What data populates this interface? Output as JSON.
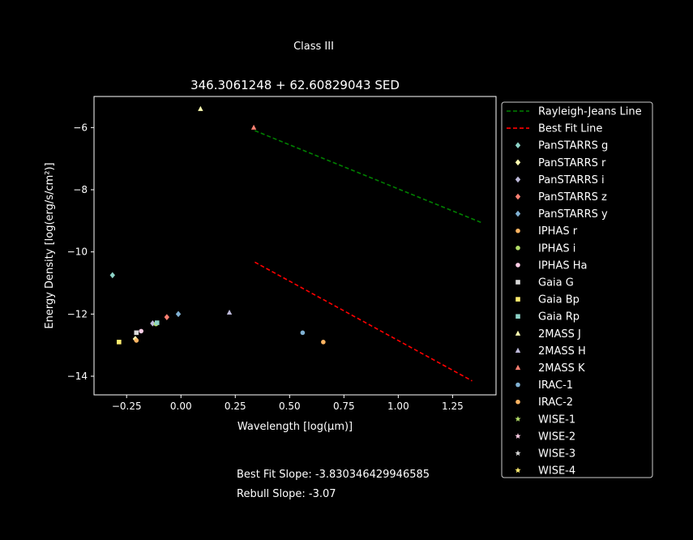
{
  "suptitle": "Class III",
  "footer": {
    "best_fit_slope": "Best Fit Slope: -3.830346429946585",
    "rebull_slope": "Rebull Slope: -3.07"
  },
  "chart_data": {
    "type": "scatter",
    "title": "346.3061248 + 62.60829043 SED",
    "xlabel": "Wavelength [log(μm)]",
    "ylabel": "Energy Density [log(erg/s/cm²)]",
    "xlim": [
      -0.4,
      1.45
    ],
    "ylim": [
      -14.6,
      -5.0
    ],
    "xticks": [
      -0.25,
      0.0,
      0.25,
      0.5,
      0.75,
      1.0,
      1.25
    ],
    "xtick_labels": [
      "−0.25",
      "0.00",
      "0.25",
      "0.50",
      "0.75",
      "1.00",
      "1.25"
    ],
    "yticks": [
      -14,
      -12,
      -10,
      -8,
      -6
    ],
    "ytick_labels": [
      "−14",
      "−12",
      "−10",
      "−8",
      "−6"
    ],
    "grid": false,
    "legend_position": "outside-right",
    "lines": [
      {
        "name": "Rayleigh-Jeans Line",
        "color": "#008000",
        "style": "dashed",
        "x": [
          0.34,
          1.38
        ],
        "y": [
          -6.1,
          -9.05
        ]
      },
      {
        "name": "Best Fit Line",
        "color": "#ff0000",
        "style": "dashed",
        "x": [
          0.34,
          1.34
        ],
        "y": [
          -10.33,
          -14.15
        ]
      }
    ],
    "series": [
      {
        "name": "PanSTARRS g",
        "color": "#8dd3c7",
        "marker": "diamond",
        "points": [
          [
            -0.315,
            -10.75
          ]
        ]
      },
      {
        "name": "PanSTARRS r",
        "color": "#ffffb3",
        "marker": "diamond",
        "points": [
          [
            -0.21,
            -12.8
          ]
        ]
      },
      {
        "name": "PanSTARRS i",
        "color": "#bebada",
        "marker": "diamond",
        "points": [
          [
            -0.13,
            -12.3
          ]
        ]
      },
      {
        "name": "PanSTARRS z",
        "color": "#fb8072",
        "marker": "diamond",
        "points": [
          [
            -0.065,
            -12.1
          ]
        ]
      },
      {
        "name": "PanSTARRS y",
        "color": "#80b1d3",
        "marker": "diamond",
        "points": [
          [
            -0.012,
            -12.0
          ]
        ]
      },
      {
        "name": "IPHAS r",
        "color": "#fdb462",
        "marker": "circle",
        "points": [
          [
            -0.205,
            -12.85
          ]
        ]
      },
      {
        "name": "IPHAS i",
        "color": "#b3de69",
        "marker": "circle",
        "points": [
          [
            -0.115,
            -12.32
          ]
        ]
      },
      {
        "name": "IPHAS Ha",
        "color": "#fccde5",
        "marker": "circle",
        "points": [
          [
            -0.183,
            -12.55
          ]
        ]
      },
      {
        "name": "Gaia G",
        "color": "#d9d9d9",
        "marker": "square",
        "points": [
          [
            -0.205,
            -12.6
          ]
        ]
      },
      {
        "name": "Gaia Bp",
        "color": "#ffed6f",
        "marker": "square",
        "points": [
          [
            -0.285,
            -12.9
          ]
        ]
      },
      {
        "name": "Gaia Rp",
        "color": "#8dd3c7",
        "marker": "square",
        "points": [
          [
            -0.11,
            -12.28
          ]
        ]
      },
      {
        "name": "2MASS J",
        "color": "#ffffb3",
        "marker": "triangle",
        "points": [
          [
            0.09,
            -5.4
          ]
        ]
      },
      {
        "name": "2MASS H",
        "color": "#bebada",
        "marker": "triangle",
        "points": [
          [
            0.223,
            -11.95
          ]
        ]
      },
      {
        "name": "2MASS K",
        "color": "#fb8072",
        "marker": "triangle",
        "points": [
          [
            0.335,
            -6.0
          ]
        ]
      },
      {
        "name": "IRAC-1",
        "color": "#80b1d3",
        "marker": "circle",
        "points": [
          [
            0.56,
            -12.6
          ]
        ]
      },
      {
        "name": "IRAC-2",
        "color": "#fdb462",
        "marker": "circle",
        "points": [
          [
            0.655,
            -12.9
          ]
        ]
      },
      {
        "name": "WISE-1",
        "color": "#b3de69",
        "marker": "star",
        "points": []
      },
      {
        "name": "WISE-2",
        "color": "#fccde5",
        "marker": "star",
        "points": []
      },
      {
        "name": "WISE-3",
        "color": "#d9d9d9",
        "marker": "star",
        "points": []
      },
      {
        "name": "WISE-4",
        "color": "#ffed6f",
        "marker": "star",
        "points": []
      }
    ]
  }
}
